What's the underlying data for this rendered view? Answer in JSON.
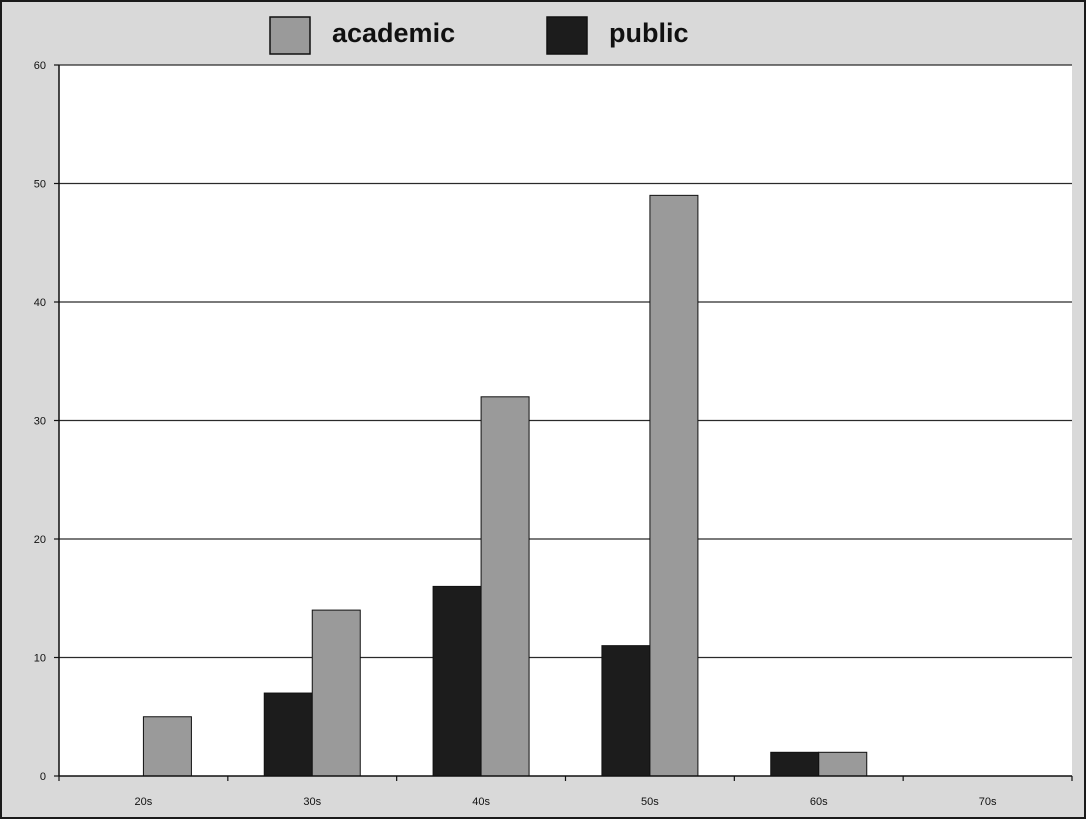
{
  "chart_data": {
    "type": "bar",
    "title": "",
    "xlabel": "",
    "ylabel": "",
    "categories": [
      "20s",
      "30s",
      "40s",
      "50s",
      "60s",
      "70s"
    ],
    "series": [
      {
        "name": "public",
        "color": "#1c1c1c",
        "values": [
          0,
          7,
          16,
          11,
          2,
          0
        ]
      },
      {
        "name": "academic",
        "color": "#9a9a9a",
        "values": [
          5,
          14,
          32,
          49,
          2,
          0
        ]
      }
    ],
    "ylim": [
      0,
      60
    ],
    "yticks": [
      0,
      10,
      20,
      30,
      40,
      50,
      60
    ],
    "yticks_labels": [
      "0",
      "10",
      "20",
      "30",
      "40",
      "50",
      "60"
    ],
    "grid": true,
    "legend": {
      "placement": "top-center",
      "entries": [
        {
          "name": "academic",
          "color": "#9a9a9a"
        },
        {
          "name": "public",
          "color": "#1c1c1c"
        }
      ]
    },
    "plot_background": "#ffffff",
    "frame_background": "#d9d9d9"
  }
}
